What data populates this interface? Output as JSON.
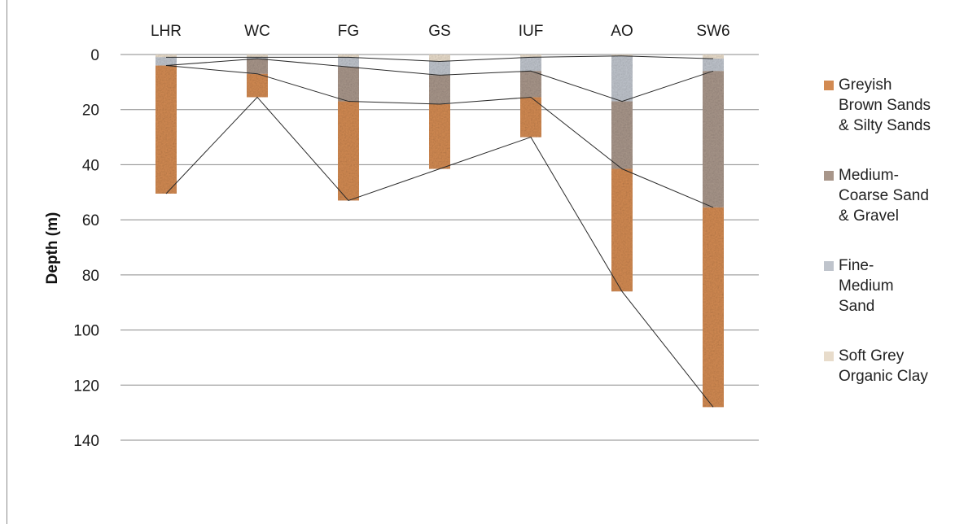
{
  "chart_data": {
    "type": "bar",
    "subtype": "stratigraphic-column",
    "categories": [
      "LHR",
      "WC",
      "FG",
      "GS",
      "IUF",
      "AO",
      "SW6"
    ],
    "ylabel": "Depth (m)",
    "ylim": [
      0,
      140
    ],
    "yticks": [
      0,
      20,
      40,
      60,
      80,
      100,
      120,
      140
    ],
    "y_reversed": true,
    "x_axis_position": "top",
    "grid": true,
    "legend_position": "right",
    "layers": [
      {
        "name": "Soft Grey\nOrganic Clay",
        "color": "#e8dccb",
        "top": [
          0,
          0,
          0,
          0,
          0,
          0,
          0
        ],
        "bottom": [
          1,
          1,
          1,
          2.5,
          1,
          0.5,
          1.5
        ]
      },
      {
        "name": "Fine-\nMedium\nSand",
        "color": "#bfc4cc",
        "top": [
          1,
          1,
          1,
          2.5,
          1,
          0.5,
          1.5
        ],
        "bottom": [
          4,
          1.5,
          4.5,
          7.5,
          6,
          17,
          6
        ]
      },
      {
        "name": "Medium-\nCoarse Sand\n& Gravel",
        "color": "#a8968a",
        "top": [
          4,
          1.5,
          4.5,
          7.5,
          6,
          17,
          6
        ],
        "bottom": [
          4,
          7,
          17,
          18,
          15.5,
          41.5,
          55.5
        ]
      },
      {
        "name": "Greyish\nBrown Sands\n& Silty Sands",
        "color": "#d28a52",
        "top": [
          4,
          7,
          17,
          18,
          15.5,
          41.5,
          55.5
        ],
        "bottom": [
          50.5,
          15.5,
          53,
          41.5,
          30,
          86,
          128
        ]
      }
    ],
    "legend_order": [
      3,
      2,
      1,
      0
    ],
    "correlation_lines": true
  }
}
